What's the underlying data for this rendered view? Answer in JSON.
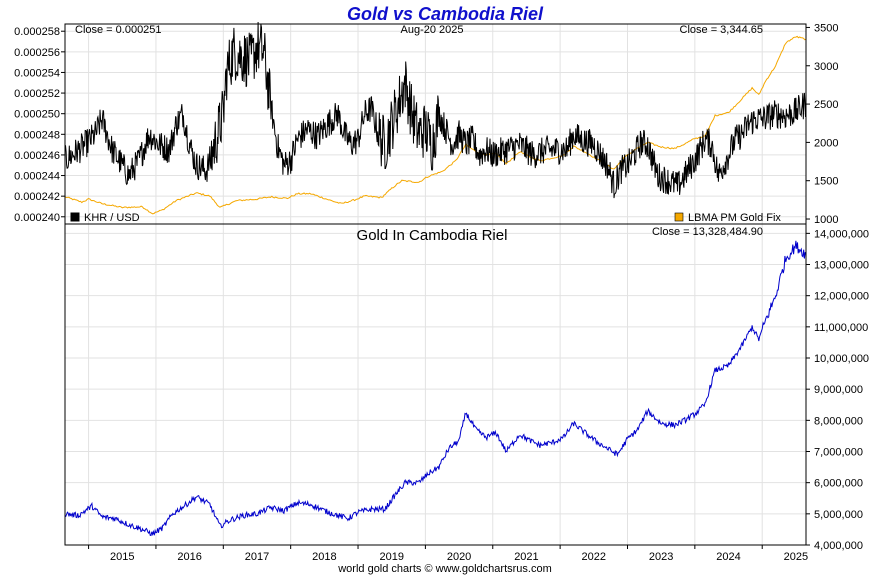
{
  "chart_data": [
    {
      "type": "line",
      "title": "Gold vs Cambodia Riel",
      "title_color": "#1010cc",
      "date_label": "Aug-20  2025",
      "left_close_text": "Close = 0.000251",
      "right_close_text": "Close = 3,344.65",
      "legend_position": "bottom",
      "grid": true,
      "x_range": [
        2014.65,
        2025.65
      ],
      "left_axis": {
        "ylim": [
          0.0002393,
          0.0002587
        ],
        "ticks": [
          "0.000240",
          "0.000242",
          "0.000244",
          "0.000246",
          "0.000248",
          "0.000250",
          "0.000252",
          "0.000254",
          "0.000256",
          "0.000258"
        ]
      },
      "right_axis": {
        "ylim": [
          935,
          3545
        ],
        "ticks": [
          "1000",
          "1500",
          "2000",
          "2500",
          "3000",
          "3500"
        ]
      },
      "series": [
        {
          "name": "KHR / USD",
          "axis": "left",
          "color": "#000000",
          "points": [
            [
              2014.65,
              0.0002455
            ],
            [
              2014.8,
              0.0002462
            ],
            [
              2014.95,
              0.000247
            ],
            [
              2015.1,
              0.000248
            ],
            [
              2015.2,
              0.0002495
            ],
            [
              2015.35,
              0.0002465
            ],
            [
              2015.5,
              0.000245
            ],
            [
              2015.6,
              0.000244
            ],
            [
              2015.75,
              0.0002455
            ],
            [
              2015.9,
              0.000248
            ],
            [
              2016.05,
              0.000247
            ],
            [
              2016.2,
              0.0002465
            ],
            [
              2016.3,
              0.000249
            ],
            [
              2016.4,
              0.00025
            ],
            [
              2016.5,
              0.000247
            ],
            [
              2016.6,
              0.000245
            ],
            [
              2016.75,
              0.0002445
            ],
            [
              2016.85,
              0.0002465
            ],
            [
              2017.0,
              0.00025
            ],
            [
              2017.05,
              0.000254
            ],
            [
              2017.15,
              0.000256
            ],
            [
              2017.3,
              0.0002555
            ],
            [
              2017.4,
              0.000255
            ],
            [
              2017.5,
              0.0002565
            ],
            [
              2017.6,
              0.000256
            ],
            [
              2017.7,
              0.000251
            ],
            [
              2017.8,
              0.000247
            ],
            [
              2017.9,
              0.000245
            ],
            [
              2018.0,
              0.0002455
            ],
            [
              2018.1,
              0.0002475
            ],
            [
              2018.25,
              0.0002485
            ],
            [
              2018.4,
              0.0002478
            ],
            [
              2018.55,
              0.000249
            ],
            [
              2018.7,
              0.00025
            ],
            [
              2018.8,
              0.000248
            ],
            [
              2018.9,
              0.000247
            ],
            [
              2019.0,
              0.0002475
            ],
            [
              2019.1,
              0.00025
            ],
            [
              2019.2,
              0.0002505
            ],
            [
              2019.3,
              0.000248
            ],
            [
              2019.4,
              0.000247
            ],
            [
              2019.5,
              0.000249
            ],
            [
              2019.6,
              0.000251
            ],
            [
              2019.7,
              0.000253
            ],
            [
              2019.8,
              0.00025
            ],
            [
              2019.9,
              0.000248
            ],
            [
              2020.0,
              0.0002485
            ],
            [
              2020.1,
              0.000247
            ],
            [
              2020.2,
              0.00025
            ],
            [
              2020.3,
              0.0002485
            ],
            [
              2020.4,
              0.000247
            ],
            [
              2020.5,
              0.000248
            ],
            [
              2020.6,
              0.000247
            ],
            [
              2020.7,
              0.0002475
            ],
            [
              2020.8,
              0.000246
            ],
            [
              2020.9,
              0.0002465
            ],
            [
              2021.0,
              0.000246
            ],
            [
              2021.2,
              0.0002465
            ],
            [
              2021.4,
              0.000247
            ],
            [
              2021.6,
              0.000246
            ],
            [
              2021.8,
              0.0002465
            ],
            [
              2022.0,
              0.0002465
            ],
            [
              2022.1,
              0.0002465
            ],
            [
              2022.2,
              0.000248
            ],
            [
              2022.3,
              0.0002475
            ],
            [
              2022.5,
              0.000247
            ],
            [
              2022.7,
              0.000245
            ],
            [
              2022.8,
              0.000243
            ],
            [
              2022.9,
              0.0002445
            ],
            [
              2023.0,
              0.000245
            ],
            [
              2023.1,
              0.000246
            ],
            [
              2023.2,
              0.0002472
            ],
            [
              2023.3,
              0.000247
            ],
            [
              2023.45,
              0.000244
            ],
            [
              2023.6,
              0.0002435
            ],
            [
              2023.75,
              0.000243
            ],
            [
              2023.9,
              0.0002445
            ],
            [
              2024.0,
              0.0002455
            ],
            [
              2024.15,
              0.0002475
            ],
            [
              2024.25,
              0.000247
            ],
            [
              2024.35,
              0.000244
            ],
            [
              2024.5,
              0.000246
            ],
            [
              2024.6,
              0.0002475
            ],
            [
              2024.7,
              0.000248
            ],
            [
              2024.8,
              0.000249
            ],
            [
              2024.9,
              0.0002495
            ],
            [
              2025.0,
              0.0002495
            ],
            [
              2025.2,
              0.00025
            ],
            [
              2025.35,
              0.0002498
            ],
            [
              2025.5,
              0.0002502
            ],
            [
              2025.65,
              0.000251
            ]
          ]
        },
        {
          "name": "LBMA PM Gold Fix",
          "axis": "right",
          "color": "#f5a800",
          "points": [
            [
              2014.65,
              1290
            ],
            [
              2014.9,
              1220
            ],
            [
              2015.0,
              1260
            ],
            [
              2015.2,
              1200
            ],
            [
              2015.5,
              1150
            ],
            [
              2015.8,
              1160
            ],
            [
              2015.95,
              1070
            ],
            [
              2016.1,
              1120
            ],
            [
              2016.3,
              1240
            ],
            [
              2016.6,
              1340
            ],
            [
              2016.8,
              1300
            ],
            [
              2016.95,
              1150
            ],
            [
              2017.2,
              1240
            ],
            [
              2017.5,
              1260
            ],
            [
              2017.7,
              1290
            ],
            [
              2017.95,
              1270
            ],
            [
              2018.1,
              1330
            ],
            [
              2018.3,
              1330
            ],
            [
              2018.6,
              1240
            ],
            [
              2018.75,
              1200
            ],
            [
              2018.95,
              1250
            ],
            [
              2019.1,
              1300
            ],
            [
              2019.35,
              1280
            ],
            [
              2019.5,
              1400
            ],
            [
              2019.65,
              1500
            ],
            [
              2019.9,
              1480
            ],
            [
              2020.05,
              1560
            ],
            [
              2020.25,
              1620
            ],
            [
              2020.45,
              1760
            ],
            [
              2020.6,
              1970
            ],
            [
              2020.75,
              1880
            ],
            [
              2020.9,
              1840
            ],
            [
              2021.05,
              1850
            ],
            [
              2021.2,
              1720
            ],
            [
              2021.4,
              1880
            ],
            [
              2021.55,
              1810
            ],
            [
              2021.7,
              1760
            ],
            [
              2021.9,
              1800
            ],
            [
              2022.05,
              1830
            ],
            [
              2022.2,
              1950
            ],
            [
              2022.4,
              1860
            ],
            [
              2022.55,
              1780
            ],
            [
              2022.8,
              1650
            ],
            [
              2022.95,
              1800
            ],
            [
              2023.1,
              1900
            ],
            [
              2023.3,
              2000
            ],
            [
              2023.5,
              1940
            ],
            [
              2023.7,
              1920
            ],
            [
              2023.85,
              1980
            ],
            [
              2024.0,
              2050
            ],
            [
              2024.15,
              2080
            ],
            [
              2024.3,
              2350
            ],
            [
              2024.5,
              2390
            ],
            [
              2024.7,
              2570
            ],
            [
              2024.85,
              2710
            ],
            [
              2024.95,
              2620
            ],
            [
              2025.05,
              2800
            ],
            [
              2025.2,
              3000
            ],
            [
              2025.35,
              3300
            ],
            [
              2025.5,
              3380
            ],
            [
              2025.65,
              3344.65
            ]
          ]
        }
      ]
    },
    {
      "type": "line",
      "title": "Gold In Cambodia Riel",
      "close_text": "Close = 13,328,484.90",
      "grid": true,
      "x_range": [
        2014.65,
        2025.65
      ],
      "ylim": [
        4000000,
        14300000
      ],
      "yticks": [
        "4,000,000",
        "5,000,000",
        "6,000,000",
        "7,000,000",
        "8,000,000",
        "9,000,000",
        "10,000,000",
        "11,000,000",
        "12,000,000",
        "13,000,000",
        "14,000,000"
      ],
      "x_tick_labels": [
        "2015",
        "2016",
        "2017",
        "2018",
        "2019",
        "2020",
        "2021",
        "2022",
        "2023",
        "2024",
        "2025"
      ],
      "series": [
        {
          "name": "",
          "color": "#0000cc",
          "points": [
            [
              2014.65,
              5000000
            ],
            [
              2014.85,
              4950000
            ],
            [
              2015.05,
              5250000
            ],
            [
              2015.2,
              4900000
            ],
            [
              2015.4,
              4850000
            ],
            [
              2015.6,
              4650000
            ],
            [
              2015.8,
              4500000
            ],
            [
              2015.95,
              4350000
            ],
            [
              2016.1,
              4550000
            ],
            [
              2016.25,
              5000000
            ],
            [
              2016.45,
              5300000
            ],
            [
              2016.6,
              5550000
            ],
            [
              2016.8,
              5300000
            ],
            [
              2016.95,
              4600000
            ],
            [
              2017.1,
              4800000
            ],
            [
              2017.3,
              4950000
            ],
            [
              2017.5,
              5000000
            ],
            [
              2017.7,
              5200000
            ],
            [
              2017.9,
              5100000
            ],
            [
              2018.1,
              5350000
            ],
            [
              2018.3,
              5300000
            ],
            [
              2018.5,
              5100000
            ],
            [
              2018.7,
              4950000
            ],
            [
              2018.85,
              4850000
            ],
            [
              2019.0,
              5050000
            ],
            [
              2019.2,
              5150000
            ],
            [
              2019.4,
              5150000
            ],
            [
              2019.55,
              5600000
            ],
            [
              2019.7,
              6000000
            ],
            [
              2019.9,
              6000000
            ],
            [
              2020.05,
              6300000
            ],
            [
              2020.2,
              6500000
            ],
            [
              2020.35,
              7100000
            ],
            [
              2020.5,
              7350000
            ],
            [
              2020.6,
              8250000
            ],
            [
              2020.75,
              7700000
            ],
            [
              2020.9,
              7450000
            ],
            [
              2021.05,
              7600000
            ],
            [
              2021.2,
              7000000
            ],
            [
              2021.4,
              7550000
            ],
            [
              2021.55,
              7350000
            ],
            [
              2021.7,
              7200000
            ],
            [
              2021.9,
              7300000
            ],
            [
              2022.05,
              7450000
            ],
            [
              2022.2,
              7900000
            ],
            [
              2022.4,
              7550000
            ],
            [
              2022.55,
              7300000
            ],
            [
              2022.7,
              7100000
            ],
            [
              2022.85,
              6900000
            ],
            [
              2023.0,
              7400000
            ],
            [
              2023.15,
              7700000
            ],
            [
              2023.3,
              8300000
            ],
            [
              2023.5,
              7900000
            ],
            [
              2023.7,
              7850000
            ],
            [
              2023.85,
              8000000
            ],
            [
              2024.0,
              8200000
            ],
            [
              2024.15,
              8500000
            ],
            [
              2024.3,
              9600000
            ],
            [
              2024.5,
              9750000
            ],
            [
              2024.7,
              10400000
            ],
            [
              2024.85,
              11000000
            ],
            [
              2024.95,
              10600000
            ],
            [
              2025.05,
              11200000
            ],
            [
              2025.2,
              12000000
            ],
            [
              2025.35,
              13200000
            ],
            [
              2025.5,
              13600000
            ],
            [
              2025.65,
              13328484.9
            ]
          ]
        }
      ]
    }
  ],
  "footer": "world gold charts © www.goldchartsrus.com"
}
